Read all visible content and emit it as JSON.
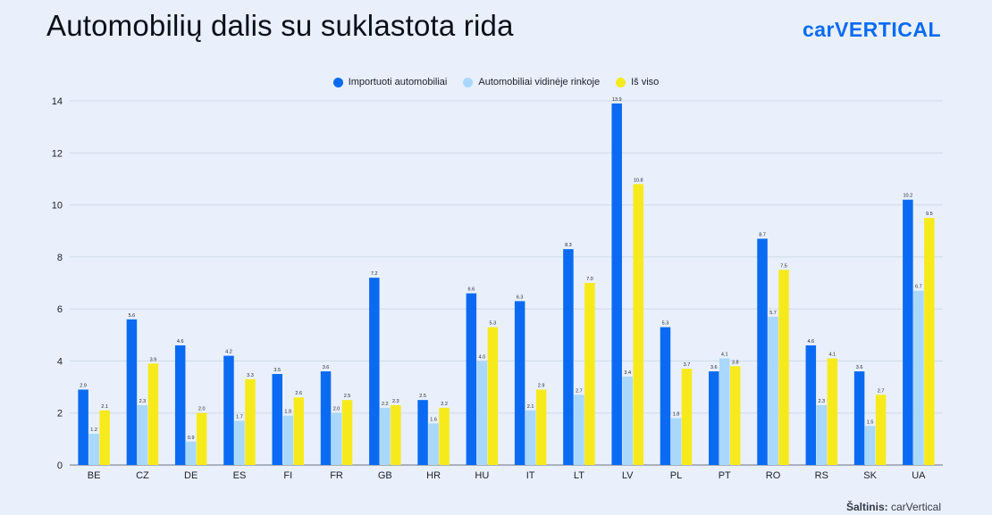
{
  "title": "Automobilių dalis su suklastota rida",
  "logo": "carVERTICAL",
  "source_label": "Šaltinis:",
  "source_value": "carVertical",
  "chart_data": {
    "type": "bar",
    "categories": [
      "BE",
      "CZ",
      "DE",
      "ES",
      "FI",
      "FR",
      "GB",
      "HR",
      "HU",
      "IT",
      "LT",
      "LV",
      "PL",
      "PT",
      "RO",
      "RS",
      "SK",
      "UA"
    ],
    "series": [
      {
        "name": "Importuoti automobiliai",
        "color": "#0a6bf2",
        "values": [
          2.9,
          5.6,
          4.6,
          4.2,
          3.5,
          3.6,
          7.2,
          2.5,
          6.6,
          6.3,
          8.3,
          13.9,
          5.3,
          3.6,
          8.7,
          4.6,
          3.6,
          10.2
        ]
      },
      {
        "name": "Automobiliai vidinėje rinkoje",
        "color": "#a9d8fb",
        "values": [
          1.2,
          2.3,
          0.9,
          1.7,
          1.9,
          2.0,
          2.2,
          1.6,
          4.0,
          2.1,
          2.7,
          3.4,
          1.8,
          4.1,
          5.7,
          2.3,
          1.5,
          6.7
        ]
      },
      {
        "name": "Iš viso",
        "color": "#f7ea1c",
        "values": [
          2.1,
          3.9,
          2.0,
          3.3,
          2.6,
          2.5,
          2.3,
          2.2,
          5.3,
          2.9,
          7.0,
          10.8,
          3.7,
          3.8,
          7.5,
          4.1,
          2.7,
          9.5
        ]
      }
    ],
    "ylim": [
      0,
      14
    ],
    "yticks": [
      0,
      2,
      4,
      6,
      8,
      10,
      12,
      14
    ],
    "grid": true,
    "legend_position": "top-center"
  }
}
